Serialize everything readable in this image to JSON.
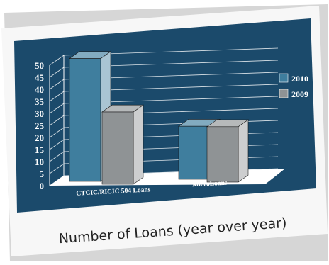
{
  "chart_data": {
    "type": "bar",
    "categories": [
      "CTCIC/RICIC 504 Loans",
      "MicroLoans"
    ],
    "series": [
      {
        "name": "2010",
        "values": [
          51,
          22
        ]
      },
      {
        "name": "2009",
        "values": [
          30,
          23
        ]
      }
    ],
    "ylim": [
      0,
      50
    ],
    "yticks": [
      0,
      5,
      10,
      15,
      20,
      25,
      30,
      35,
      40,
      45,
      50
    ],
    "legend_position": "right",
    "grid": true,
    "three_d": true
  },
  "caption": "Number of Loans (year over year)",
  "colors": {
    "panel": "#1b4a6b",
    "bar_2010": "#3f7e9e",
    "bar_2009": "#8f9395",
    "floor": "#ffffff"
  }
}
